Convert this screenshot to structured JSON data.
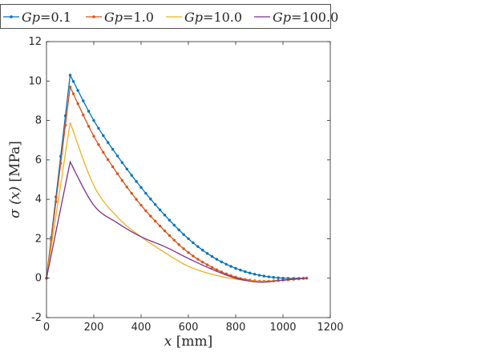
{
  "chart_data": {
    "type": "line",
    "xlabel_var": "x",
    "xlabel_unit": "[mm]",
    "ylabel_var": "σ (x)",
    "ylabel_unit": "[MPa]",
    "xlim": [
      0,
      1200
    ],
    "ylim": [
      -2,
      12
    ],
    "xticks": [
      "0",
      "200",
      "400",
      "600",
      "800",
      "1000",
      "1200"
    ],
    "yticks": [
      "-2",
      "0",
      "2",
      "4",
      "6",
      "8",
      "10",
      "12"
    ],
    "grid": false,
    "legend_position": "top",
    "series": [
      {
        "name_var": "Gp",
        "name_val": "=0.1",
        "color": "#0072BD",
        "markers": true,
        "x": [
          0,
          100,
          200,
          300,
          400,
          500,
          600,
          700,
          800,
          900,
          1000,
          1100
        ],
        "y": [
          0,
          10.3,
          8.0,
          6.2,
          4.6,
          3.2,
          2.0,
          1.1,
          0.5,
          0.15,
          0.0,
          0.0
        ]
      },
      {
        "name_var": "Gp",
        "name_val": "=1.0",
        "color": "#D95319",
        "markers": true,
        "x": [
          0,
          100,
          200,
          300,
          400,
          500,
          600,
          700,
          800,
          900,
          1000,
          1100
        ],
        "y": [
          0,
          9.7,
          7.2,
          5.3,
          3.7,
          2.4,
          1.3,
          0.55,
          0.05,
          -0.15,
          -0.1,
          0.0
        ]
      },
      {
        "name_var": "Gp",
        "name_val": "=10.0",
        "color": "#EDB120",
        "markers": false,
        "x": [
          0,
          100,
          200,
          300,
          400,
          500,
          600,
          700,
          800,
          900,
          1000,
          1100
        ],
        "y": [
          0,
          7.9,
          4.7,
          3.1,
          2.1,
          1.3,
          0.6,
          0.2,
          -0.05,
          -0.15,
          -0.1,
          0.0
        ]
      },
      {
        "name_var": "Gp",
        "name_val": "=100.0",
        "color": "#7E2F8E",
        "markers": false,
        "x": [
          0,
          100,
          200,
          300,
          400,
          500,
          600,
          700,
          800,
          900,
          1000,
          1100
        ],
        "y": [
          0,
          5.9,
          3.7,
          2.8,
          2.1,
          1.6,
          1.0,
          0.45,
          0.0,
          -0.2,
          -0.1,
          0.0
        ]
      }
    ]
  }
}
